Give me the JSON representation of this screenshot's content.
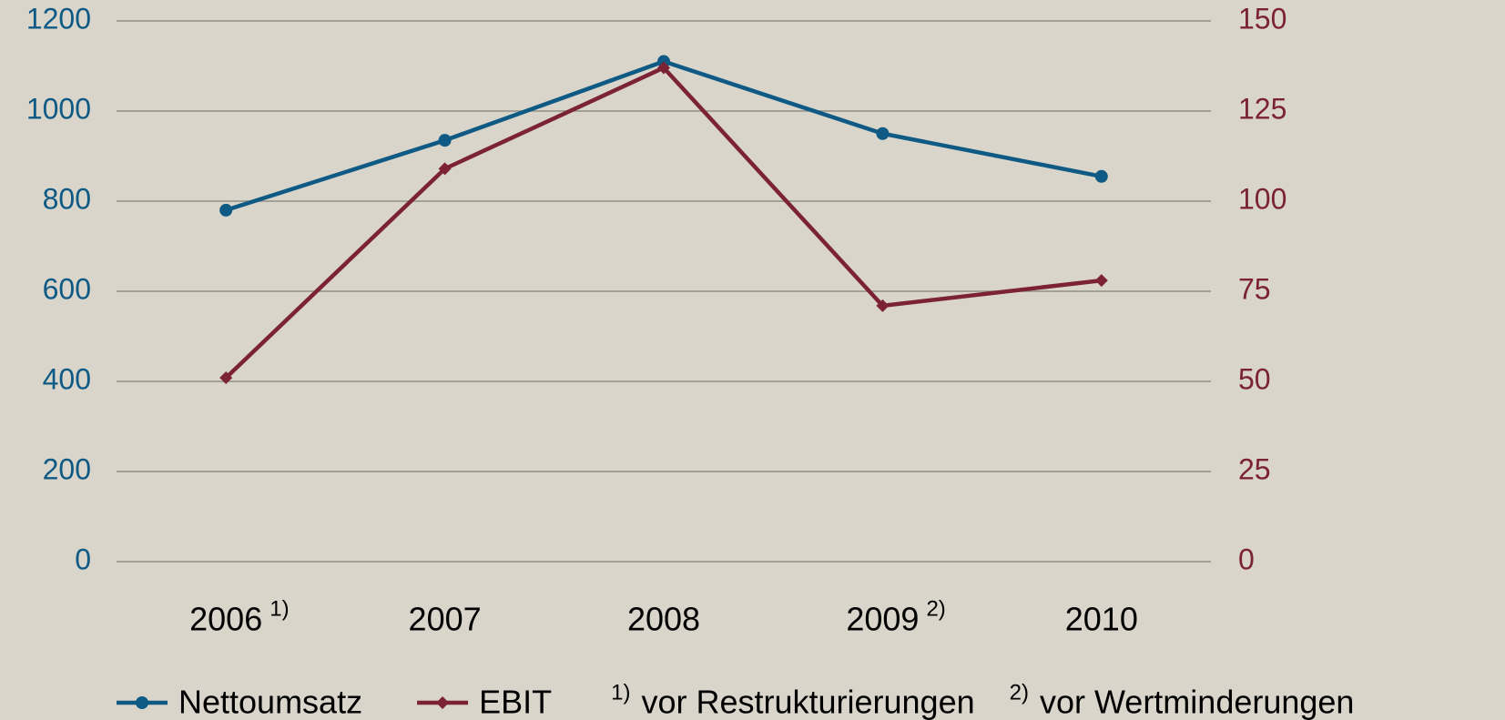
{
  "chart_data": {
    "type": "line",
    "categories": [
      "2006",
      "2007",
      "2008",
      "2009",
      "2010"
    ],
    "category_notes": [
      "1)",
      null,
      null,
      "2)",
      null
    ],
    "series": [
      {
        "name": "Nettoumsatz",
        "color": "#0e5a85",
        "marker": "circle",
        "values": [
          780,
          935,
          1110,
          950,
          855
        ]
      },
      {
        "name": "EBIT",
        "color": "#7b2333",
        "marker": "diamond",
        "axis": "y2",
        "values": [
          51,
          109,
          137,
          71,
          78
        ]
      }
    ],
    "ylim": [
      0,
      1200
    ],
    "yticks": [
      0,
      200,
      400,
      600,
      800,
      1000,
      1200
    ],
    "y2lim": [
      0,
      150
    ],
    "y2ticks": [
      0,
      25,
      50,
      75,
      100,
      125,
      150
    ],
    "grid": true,
    "legend": "bottom",
    "footnotes": [
      {
        "marker": "1)",
        "text": "vor Restrukturierungen"
      },
      {
        "marker": "2)",
        "text": "vor Wertminderungen"
      }
    ]
  }
}
